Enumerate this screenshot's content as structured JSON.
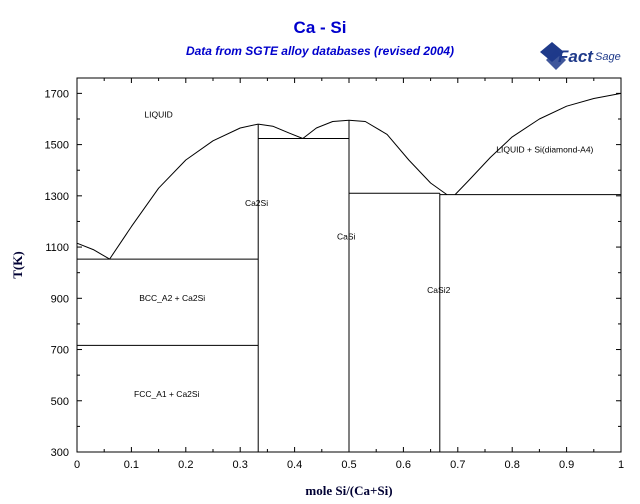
{
  "header": {
    "title": "Ca - Si",
    "subtitle": "Data from SGTE alloy databases (revised 2004)",
    "logo_main": "Fact",
    "logo_sub": "Sage"
  },
  "chart_data": {
    "type": "line",
    "title": "Ca - Si",
    "subtitle": "Data from SGTE alloy databases (revised 2004)",
    "xlabel": "mole Si/(Ca+Si)",
    "ylabel": "T(K)",
    "xlim": [
      0,
      1
    ],
    "ylim": [
      300,
      1760
    ],
    "x_ticks": [
      0,
      0.1,
      0.2,
      0.3,
      0.4,
      0.5,
      0.6,
      0.7,
      0.8,
      0.9,
      1
    ],
    "x_tick_labels": [
      "0",
      "0.1",
      "0.2",
      "0.3",
      "0.4",
      "0.5",
      "0.6",
      "0.7",
      "0.8",
      "0.9",
      "1"
    ],
    "y_ticks": [
      300,
      500,
      700,
      900,
      1100,
      1300,
      1500,
      1700
    ],
    "y_tick_labels": [
      "300",
      "500",
      "700",
      "900",
      "1100",
      "1300",
      "1500",
      "1700"
    ],
    "grid": false,
    "line_color": "#000000",
    "curves": [
      {
        "id": "liquidus-ca-side",
        "points": [
          [
            0,
            1115
          ],
          [
            0.03,
            1090
          ],
          [
            0.06,
            1053
          ]
        ]
      },
      {
        "id": "liquidus-ca2si-left",
        "points": [
          [
            0.06,
            1053
          ],
          [
            0.1,
            1180
          ],
          [
            0.15,
            1330
          ],
          [
            0.2,
            1440
          ],
          [
            0.25,
            1515
          ],
          [
            0.3,
            1565
          ],
          [
            0.333,
            1580
          ]
        ]
      },
      {
        "id": "liquidus-ca2si-right",
        "points": [
          [
            0.333,
            1580
          ],
          [
            0.36,
            1572
          ],
          [
            0.39,
            1545
          ],
          [
            0.415,
            1524
          ]
        ]
      },
      {
        "id": "liquidus-casi-left",
        "points": [
          [
            0.415,
            1524
          ],
          [
            0.44,
            1565
          ],
          [
            0.47,
            1590
          ],
          [
            0.5,
            1595
          ]
        ]
      },
      {
        "id": "liquidus-casi-right",
        "points": [
          [
            0.5,
            1595
          ],
          [
            0.53,
            1590
          ],
          [
            0.57,
            1540
          ],
          [
            0.61,
            1440
          ],
          [
            0.65,
            1350
          ],
          [
            0.68,
            1305
          ]
        ]
      },
      {
        "id": "liquidus-si-side",
        "points": [
          [
            0.695,
            1305
          ],
          [
            0.72,
            1360
          ],
          [
            0.76,
            1450
          ],
          [
            0.8,
            1530
          ],
          [
            0.85,
            1600
          ],
          [
            0.9,
            1650
          ],
          [
            0.95,
            1680
          ],
          [
            1,
            1700
          ]
        ]
      },
      {
        "id": "eutectic-ca-ca2si",
        "points": [
          [
            0,
            1053
          ],
          [
            0.333,
            1053
          ]
        ]
      },
      {
        "id": "transition-bcc-fcc",
        "points": [
          [
            0,
            716
          ],
          [
            0.333,
            716
          ]
        ]
      },
      {
        "id": "eutectic-ca2si-casi",
        "points": [
          [
            0.333,
            1524
          ],
          [
            0.5,
            1524
          ]
        ]
      },
      {
        "id": "eutectic-casi-casi2",
        "points": [
          [
            0.5,
            1310
          ],
          [
            0.667,
            1310
          ]
        ]
      },
      {
        "id": "eutectic-casi2-si",
        "points": [
          [
            0.667,
            1305
          ],
          [
            1,
            1305
          ]
        ]
      },
      {
        "id": "compound-ca2si",
        "points": [
          [
            0.333,
            300
          ],
          [
            0.333,
            1580
          ]
        ]
      },
      {
        "id": "compound-casi",
        "points": [
          [
            0.5,
            300
          ],
          [
            0.5,
            1595
          ]
        ]
      },
      {
        "id": "compound-casi2",
        "points": [
          [
            0.667,
            300
          ],
          [
            0.667,
            1310
          ]
        ]
      }
    ],
    "annotations": [
      {
        "text": "LIQUID",
        "x": 0.15,
        "y": 1605
      },
      {
        "text": "LIQUID + Si(diamond-A4)",
        "x": 0.86,
        "y": 1470
      },
      {
        "text": "Ca2Si",
        "x": 0.33,
        "y": 1260
      },
      {
        "text": "CaSi",
        "x": 0.495,
        "y": 1130
      },
      {
        "text": "CaSi2",
        "x": 0.665,
        "y": 920
      },
      {
        "text": "BCC_A2 + Ca2Si",
        "x": 0.175,
        "y": 890
      },
      {
        "text": "FCC_A1 + Ca2Si",
        "x": 0.165,
        "y": 515
      }
    ]
  }
}
